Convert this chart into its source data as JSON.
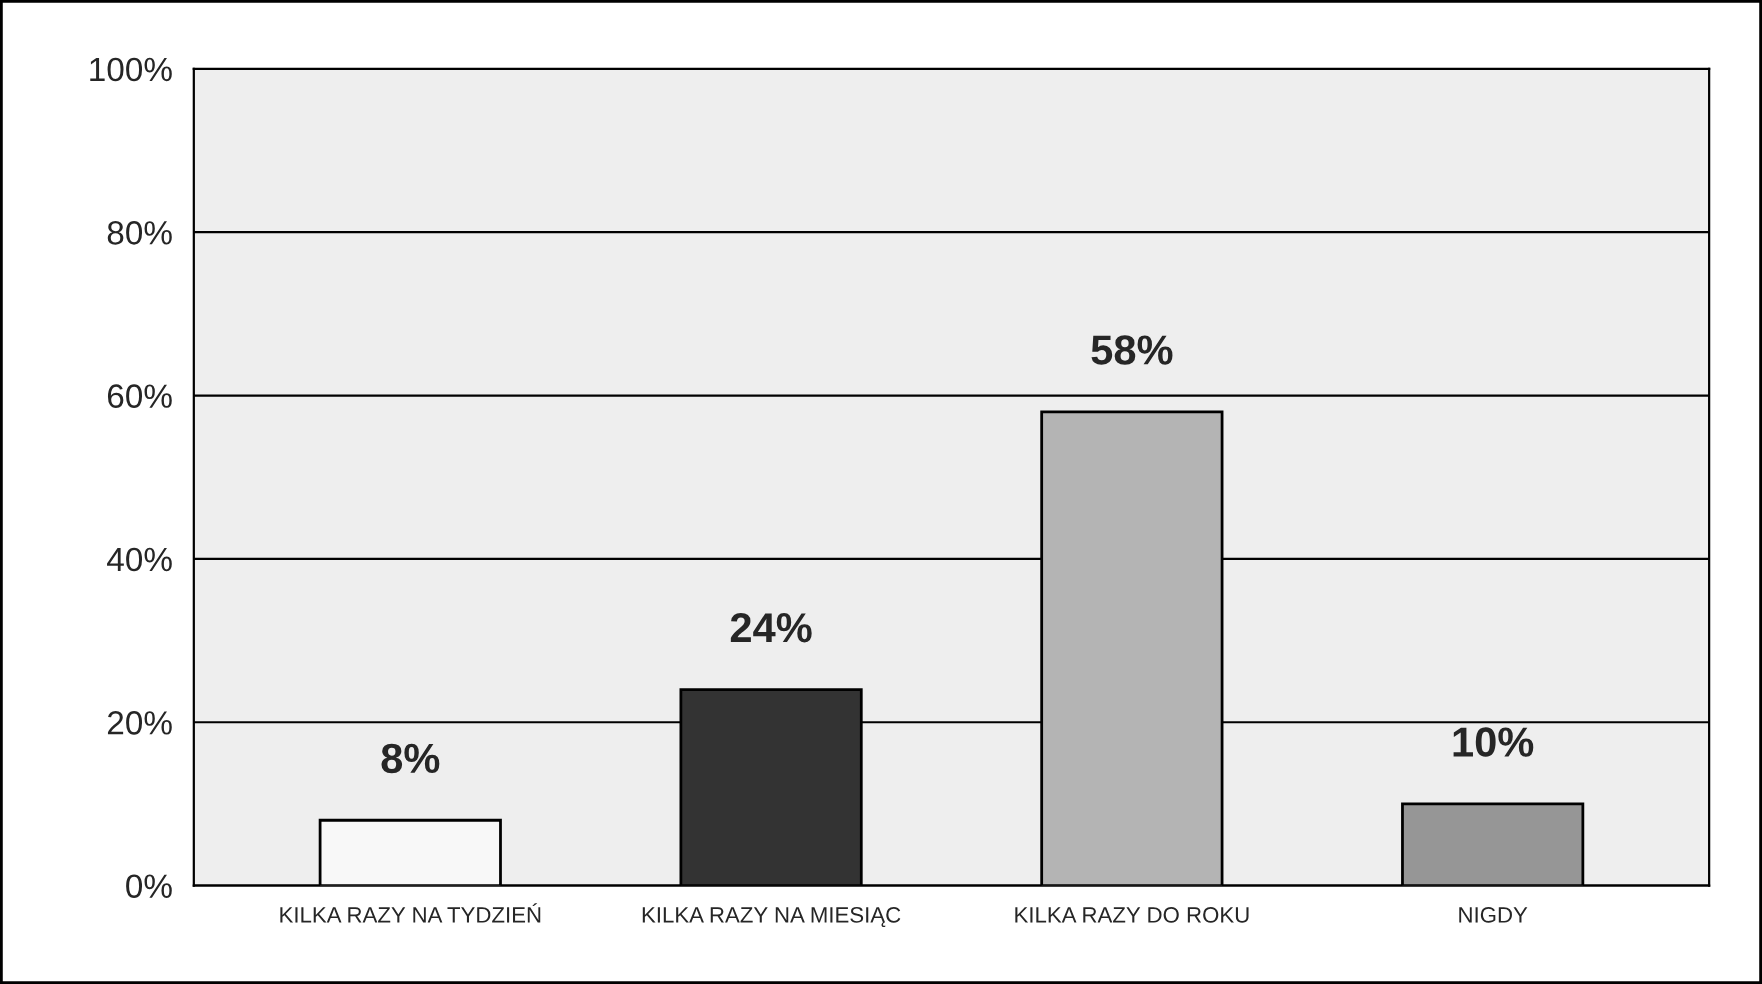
{
  "chart_data": {
    "type": "bar",
    "categories": [
      "KILKA RAZY NA TYDZIEŃ",
      "KILKA RAZY NA MIESIĄC",
      "KILKA RAZY DO ROKU",
      "NIGDY"
    ],
    "values": [
      8,
      24,
      58,
      10
    ],
    "colors": [
      "#f8f8f8",
      "#333333",
      "#b4b4b4",
      "#969696"
    ],
    "value_labels": [
      "8%",
      "24%",
      "58%",
      "10%"
    ],
    "ylim": [
      0,
      100
    ],
    "yticks": [
      {
        "value": 0,
        "label": "0%"
      },
      {
        "value": 20,
        "label": "20%"
      },
      {
        "value": 40,
        "label": "40%"
      },
      {
        "value": 60,
        "label": "60%"
      },
      {
        "value": 80,
        "label": "80%"
      },
      {
        "value": 100,
        "label": "100%"
      }
    ],
    "grid": "y",
    "legend": false
  }
}
